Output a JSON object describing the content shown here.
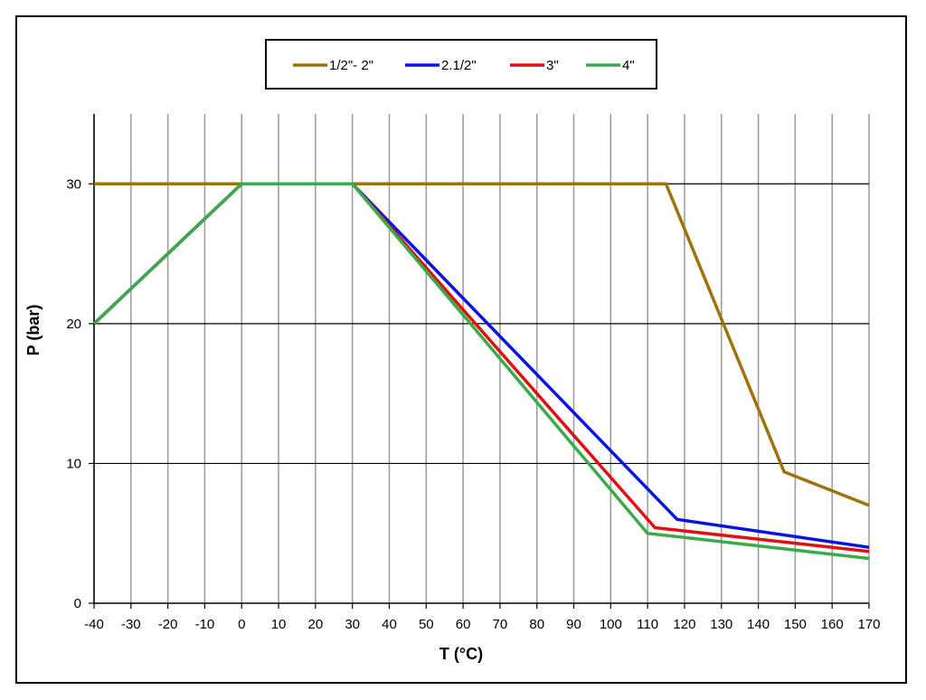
{
  "chart_data": {
    "type": "line",
    "title": "",
    "xlabel": "T (°C)",
    "ylabel": "P (bar)",
    "xlim": [
      -40,
      170
    ],
    "ylim": [
      0,
      35
    ],
    "xticks": [
      -40,
      -30,
      -20,
      -10,
      0,
      10,
      20,
      30,
      40,
      50,
      60,
      70,
      80,
      90,
      100,
      110,
      120,
      130,
      140,
      150,
      160,
      170
    ],
    "yticks": [
      0,
      10,
      20,
      30
    ],
    "grid": {
      "vertical": true,
      "horizontal": true
    },
    "legend_position": "top-center",
    "series": [
      {
        "name": "1/2\"- 2\"",
        "color": "#a0720a",
        "x": [
          -40,
          115,
          147,
          170
        ],
        "y": [
          30,
          30,
          9.4,
          7.0
        ]
      },
      {
        "name": "2.1/2\"",
        "color": "#0a14e0",
        "x": [
          -40,
          0,
          30,
          118,
          170
        ],
        "y": [
          20,
          30,
          30,
          6.0,
          4.0
        ]
      },
      {
        "name": "3\"",
        "color": "#e01010",
        "x": [
          -40,
          0,
          30,
          112,
          170
        ],
        "y": [
          20,
          30,
          30,
          5.4,
          3.7
        ]
      },
      {
        "name": "4\"",
        "color": "#3aaa4a",
        "x": [
          -40,
          0,
          30,
          110,
          170
        ],
        "y": [
          20,
          30,
          30,
          5.0,
          3.2
        ]
      }
    ]
  }
}
